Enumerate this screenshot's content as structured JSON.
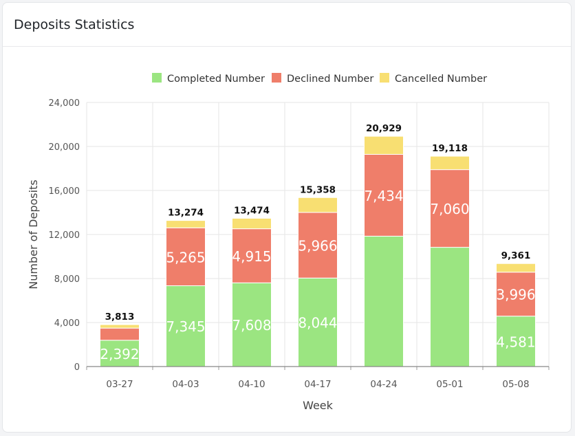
{
  "card": {
    "title": "Deposits Statistics"
  },
  "colors": {
    "completed": "#9be581",
    "declined": "#ef7e6a",
    "cancelled": "#f8df72",
    "grid": "#e6e6e6",
    "axis": "#888888"
  },
  "chart_data": {
    "type": "bar",
    "stacked": true,
    "title": "",
    "xlabel": "Week",
    "ylabel": "Number of Deposits",
    "ylim": [
      0,
      24000
    ],
    "yticks": [
      0,
      4000,
      8000,
      12000,
      16000,
      20000,
      24000
    ],
    "ytick_labels": [
      "0",
      "4,000",
      "8,000",
      "12,000",
      "16,000",
      "20,000",
      "24,000"
    ],
    "legend_position": "top",
    "grid": true,
    "categories": [
      "03-27",
      "04-03",
      "04-10",
      "04-17",
      "04-24",
      "05-01",
      "05-08"
    ],
    "series": [
      {
        "name": "Completed Number",
        "color_key": "completed",
        "values": [
          2392,
          7345,
          7608,
          8044,
          11849,
          10838,
          4581
        ],
        "labels": [
          "2,392",
          "7,345",
          "7,608",
          "8,044",
          "",
          "",
          "4,581"
        ]
      },
      {
        "name": "Declined Number",
        "color_key": "declined",
        "values": [
          1100,
          5265,
          4915,
          5966,
          7434,
          7060,
          3996
        ],
        "labels": [
          "",
          "5,265",
          "4,915",
          "5,966",
          "7,434",
          "7,060",
          "3,996"
        ]
      },
      {
        "name": "Cancelled Number",
        "color_key": "cancelled",
        "values": [
          321,
          664,
          951,
          1348,
          1646,
          1220,
          784
        ],
        "labels": [
          "",
          "",
          "",
          "",
          "",
          "",
          ""
        ]
      }
    ],
    "totals": [
      "3,813",
      "13,274",
      "13,474",
      "15,358",
      "20,929",
      "19,118",
      "9,361"
    ]
  }
}
